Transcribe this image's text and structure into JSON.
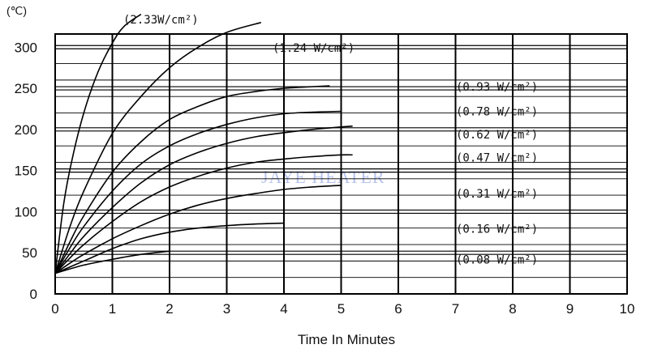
{
  "chart_data": {
    "type": "line",
    "title": "",
    "xlabel": "Time In Minutes",
    "ylabel": "",
    "y_unit": "(℃)",
    "watermark": "JAYE HEATER",
    "xlim": [
      0,
      10
    ],
    "ylim": [
      0,
      300
    ],
    "x_ticks": [
      0,
      1,
      2,
      3,
      4,
      5,
      6,
      7,
      8,
      9,
      10
    ],
    "y_ticks": [
      0,
      50,
      100,
      150,
      200,
      250,
      300
    ],
    "grid": true,
    "series": [
      {
        "name": "(2.33W/cm²)",
        "x": [
          0,
          0.15,
          0.3,
          0.5,
          0.75,
          1.0,
          1.2,
          1.5
        ],
        "y": [
          25,
          110,
          165,
          220,
          270,
          305,
          325,
          340
        ]
      },
      {
        "name": "(1.24 W/cm²)",
        "x": [
          0,
          0.25,
          0.5,
          1.0,
          1.5,
          2.0,
          2.5,
          3.0,
          3.6
        ],
        "y": [
          25,
          80,
          125,
          195,
          240,
          275,
          300,
          318,
          330
        ]
      },
      {
        "name": "(0.93 W/cm²)",
        "x": [
          0,
          0.25,
          0.5,
          1.0,
          1.5,
          2.0,
          2.5,
          3.0,
          3.5,
          4.0,
          4.5,
          4.8
        ],
        "y": [
          25,
          62,
          95,
          148,
          185,
          212,
          228,
          240,
          246,
          250,
          252,
          253
        ]
      },
      {
        "name": "(0.78 W/cm²)",
        "x": [
          0,
          0.25,
          0.5,
          1.0,
          1.5,
          2.0,
          2.5,
          3.0,
          3.5,
          4.0,
          4.5,
          5.0
        ],
        "y": [
          25,
          55,
          82,
          125,
          158,
          180,
          195,
          206,
          214,
          219,
          221,
          222
        ]
      },
      {
        "name": "(0.62 W/cm²)",
        "x": [
          0,
          0.25,
          0.5,
          1.0,
          1.5,
          2.0,
          2.5,
          3.0,
          3.5,
          4.0,
          4.5,
          5.0,
          5.2
        ],
        "y": [
          25,
          48,
          70,
          105,
          135,
          157,
          172,
          183,
          191,
          196,
          200,
          203,
          204
        ]
      },
      {
        "name": "(0.47 W/cm²)",
        "x": [
          0,
          0.25,
          0.5,
          1.0,
          1.5,
          2.0,
          2.5,
          3.0,
          3.5,
          4.0,
          4.5,
          5.0,
          5.2
        ],
        "y": [
          25,
          43,
          60,
          88,
          112,
          130,
          143,
          153,
          160,
          164,
          167,
          169,
          169
        ]
      },
      {
        "name": "(0.31 W/cm²)",
        "x": [
          0,
          0.25,
          0.5,
          1.0,
          1.5,
          2.0,
          2.5,
          3.0,
          3.5,
          4.0,
          4.5,
          5.0
        ],
        "y": [
          25,
          37,
          48,
          67,
          83,
          97,
          108,
          116,
          122,
          127,
          130,
          132
        ]
      },
      {
        "name": "(0.16 W/cm²)",
        "x": [
          0,
          0.5,
          1.0,
          1.5,
          2.0,
          2.5,
          3.0,
          3.5,
          4.0
        ],
        "y": [
          25,
          40,
          55,
          67,
          75,
          80,
          83,
          85,
          86
        ]
      },
      {
        "name": "(0.08 W/cm²)",
        "x": [
          0,
          0.5,
          1.0,
          1.5,
          2.0
        ],
        "y": [
          25,
          35,
          42,
          48,
          52
        ]
      }
    ],
    "label_y": [
      318,
      277,
      253,
      223,
      195,
      167,
      123,
      80,
      43
    ]
  }
}
